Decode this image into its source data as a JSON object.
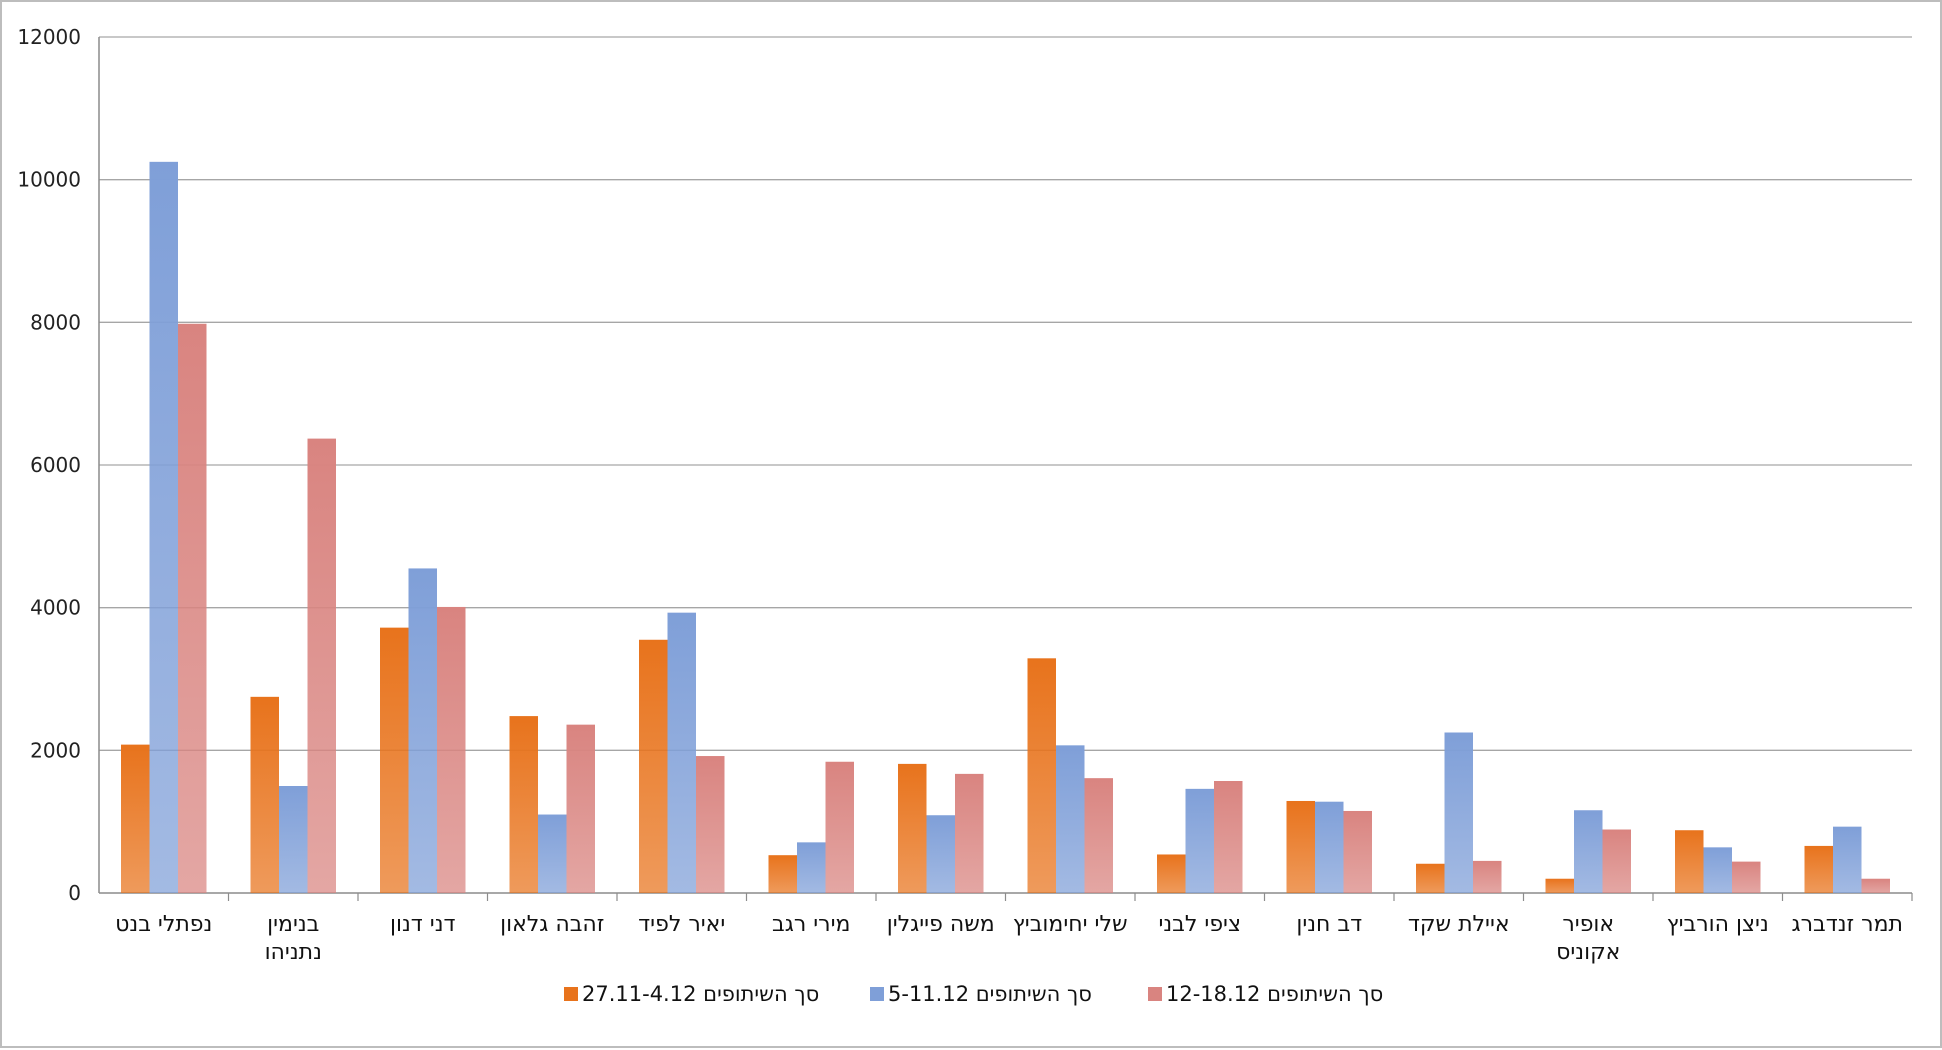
{
  "chart_data": {
    "type": "bar",
    "categories": [
      "נפתלי בנט",
      "בנימין נתניהו",
      "דני דנון",
      "זהבה גלאון",
      "יאיר לפיד",
      "מירי רגב",
      "משה פייגלין",
      "שלי יחימוביץ",
      "ציפי לבני",
      "דב חנין",
      "איילת שקד",
      "אופיר אקוניס",
      "ניצן הורביץ",
      "תמר זנדברג"
    ],
    "category_lines": [
      [
        "נפתלי בנט"
      ],
      [
        "בנימין",
        "נתניהו"
      ],
      [
        "דני דנון"
      ],
      [
        "זהבה גלאון"
      ],
      [
        "יאיר לפיד"
      ],
      [
        "מירי רגב"
      ],
      [
        "משה פייגלין"
      ],
      [
        "שלי יחימוביץ"
      ],
      [
        "ציפי לבני"
      ],
      [
        "דב חנין"
      ],
      [
        "איילת שקד"
      ],
      [
        "אופיר",
        "אקוניס"
      ],
      [
        "ניצן הורביץ"
      ],
      [
        "תמר זנדברג"
      ]
    ],
    "series": [
      {
        "name": "סך השיתופים 27.11-4.12",
        "color": "#e8731c",
        "values": [
          2080,
          2750,
          3720,
          2480,
          3550,
          530,
          1810,
          3290,
          540,
          1290,
          410,
          200,
          880,
          660
        ]
      },
      {
        "name": "סך השיתופים 5-11.12",
        "color": "#7f9fd8",
        "values": [
          10250,
          1500,
          4550,
          1100,
          3930,
          710,
          1090,
          2070,
          1460,
          1280,
          2250,
          1160,
          640,
          930
        ]
      },
      {
        "name": "סך השיתופים 12-18.12",
        "color": "#d98480",
        "values": [
          7980,
          6370,
          4010,
          2360,
          1920,
          1840,
          1670,
          1610,
          1570,
          1150,
          450,
          890,
          440,
          200
        ]
      }
    ],
    "ylim": [
      0,
      12000
    ],
    "yticks": [
      0,
      2000,
      4000,
      6000,
      8000,
      10000,
      12000
    ],
    "title": "",
    "xlabel": "",
    "ylabel": "",
    "grid": "horizontal",
    "legend": "bottom"
  }
}
